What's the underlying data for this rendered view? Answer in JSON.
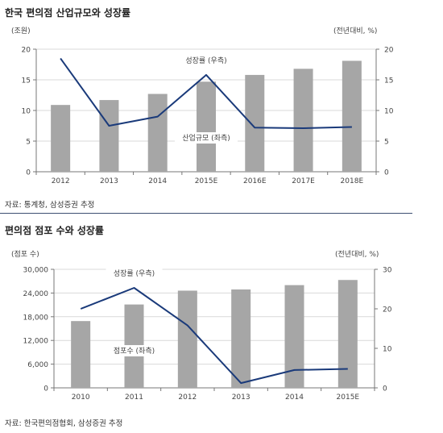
{
  "charts": [
    {
      "title": "한국 편의점 산업규모와 성장률",
      "source": "자료: 통계청, 삼성증권 추정",
      "chart_data": {
        "type": "bar",
        "categories": [
          "2012",
          "2013",
          "2014",
          "2015E",
          "2016E",
          "2017E",
          "2018E"
        ],
        "series": [
          {
            "name": "산업규모 (좌측)",
            "type": "bar",
            "axis": "left",
            "values": [
              10.9,
              11.7,
              12.7,
              14.7,
              15.8,
              16.8,
              18.1
            ]
          },
          {
            "name": "성장률 (우측)",
            "type": "line",
            "axis": "right",
            "values": [
              18.5,
              7.5,
              9.0,
              15.8,
              7.2,
              7.1,
              7.3
            ]
          }
        ],
        "ylabel_left": "(조원)",
        "ylabel_right": "(전년대비, %)",
        "ylim_left": [
          0,
          20
        ],
        "ylim_right": [
          0,
          20
        ],
        "yticks_left": [
          0,
          5,
          10,
          15,
          20
        ],
        "yticks_right": [
          0,
          5,
          10,
          15,
          20
        ],
        "yticklabels_left": [
          "0",
          "5",
          "10",
          "15",
          "20"
        ],
        "yticklabels_right": [
          "0",
          "5",
          "10",
          "15",
          "20"
        ],
        "grid": true,
        "colors": {
          "bar": "#a6a6a6",
          "line": "#1a3a7a",
          "grid": "#d9d9d9"
        }
      }
    },
    {
      "title": "편의점 점포 수와 성장률",
      "source": "자료: 한국편의점협회, 삼성증권 추정",
      "chart_data": {
        "type": "bar",
        "categories": [
          "2010",
          "2011",
          "2012",
          "2013",
          "2014",
          "2015E"
        ],
        "series": [
          {
            "name": "점포수 (좌측)",
            "type": "bar",
            "axis": "left",
            "values": [
              16900,
              21100,
              24600,
              24900,
              26000,
              27300
            ]
          },
          {
            "name": "성장률 (우측)",
            "type": "line",
            "axis": "right",
            "values": [
              20.0,
              25.3,
              15.8,
              1.2,
              4.5,
              4.8
            ]
          }
        ],
        "ylabel_left": "(점포 수)",
        "ylabel_right": "(전년대비, %)",
        "ylim_left": [
          0,
          30000
        ],
        "ylim_right": [
          0,
          30
        ],
        "yticks_left": [
          0,
          6000,
          12000,
          18000,
          24000,
          30000
        ],
        "yticks_right": [
          0,
          10,
          20,
          30
        ],
        "yticklabels_left": [
          "0",
          "6,000",
          "12,000",
          "18,000",
          "24,000",
          "30,000"
        ],
        "yticklabels_right": [
          "0",
          "10",
          "20",
          "30"
        ],
        "grid": true,
        "colors": {
          "bar": "#a6a6a6",
          "line": "#1a3a7a",
          "grid": "#d9d9d9"
        }
      }
    }
  ]
}
